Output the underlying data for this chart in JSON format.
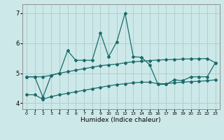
{
  "xlabel": "Humidex (Indice chaleur)",
  "bg_color": "#cce8e8",
  "grid_color": "#b0d0d0",
  "line_color": "#1a6b6b",
  "x_ticks": [
    0,
    1,
    2,
    3,
    4,
    5,
    6,
    7,
    8,
    9,
    10,
    11,
    12,
    13,
    14,
    15,
    16,
    17,
    18,
    19,
    20,
    21,
    22,
    23
  ],
  "ylim": [
    3.8,
    7.3
  ],
  "xlim": [
    -0.5,
    23.5
  ],
  "yticks": [
    4,
    5,
    6,
    7
  ],
  "series1_x": [
    0,
    1,
    2,
    3,
    4,
    5,
    6,
    7,
    8,
    9,
    10,
    11,
    12,
    13,
    14,
    15,
    16,
    17,
    18,
    19,
    20,
    21,
    22,
    23
  ],
  "series1_y": [
    4.88,
    4.88,
    4.2,
    4.93,
    5.0,
    5.75,
    5.43,
    5.43,
    5.43,
    6.35,
    5.55,
    6.05,
    7.0,
    5.55,
    5.53,
    5.28,
    4.63,
    4.63,
    4.78,
    4.75,
    4.88,
    4.88,
    4.88,
    5.35
  ],
  "series2_x": [
    0,
    1,
    2,
    3,
    4,
    5,
    6,
    7,
    8,
    9,
    10,
    11,
    12,
    13,
    14,
    15,
    16,
    17,
    18,
    19,
    20,
    21,
    22,
    23
  ],
  "series2_y": [
    4.88,
    4.88,
    4.88,
    4.93,
    5.0,
    5.05,
    5.1,
    5.15,
    5.2,
    5.25,
    5.28,
    5.3,
    5.35,
    5.38,
    5.4,
    5.42,
    5.44,
    5.45,
    5.46,
    5.47,
    5.48,
    5.48,
    5.49,
    5.35
  ],
  "series3_x": [
    0,
    1,
    2,
    3,
    4,
    5,
    6,
    7,
    8,
    9,
    10,
    11,
    12,
    13,
    14,
    15,
    16,
    17,
    18,
    19,
    20,
    21,
    22,
    23
  ],
  "series3_y": [
    4.28,
    4.28,
    4.13,
    4.22,
    4.28,
    4.33,
    4.38,
    4.43,
    4.48,
    4.53,
    4.58,
    4.62,
    4.65,
    4.68,
    4.7,
    4.7,
    4.65,
    4.65,
    4.68,
    4.7,
    4.72,
    4.73,
    4.75,
    4.78
  ]
}
